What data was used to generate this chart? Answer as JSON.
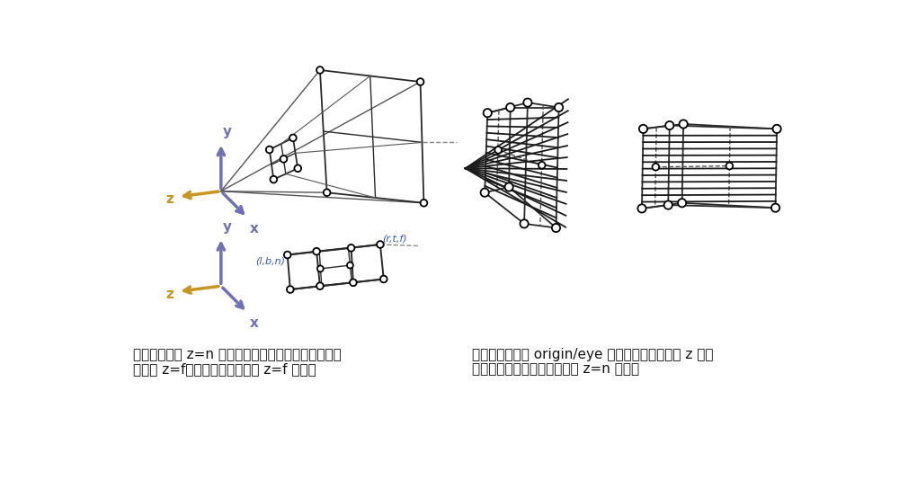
{
  "bg_color": "#ffffff",
  "axis_y_color": "#7070b8",
  "axis_z_color": "#c8961e",
  "axis_x_color": "#7070b8",
  "line_color": "#2a2a2a",
  "text1": "透视投影保持 z=n 平面上的点不变，并将透视体积背",
  "text2": "面的大 z=f矩形映射到背面的小 z=f 矩形。",
  "text3": "透视投影将通过 origin/eye 的任何直线映射到与 z 轴平",
  "text4": "行的直线上，而不移动直线上 z=n 的点。",
  "label_lbn": "(l,b,n)",
  "label_rtf": "(r,t,f)"
}
